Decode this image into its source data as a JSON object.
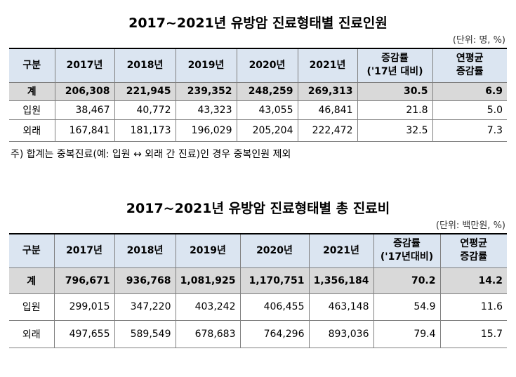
{
  "tables": [
    {
      "title": "2017~2021년 유방암 진료형태별 진료인원",
      "unit": "(단위: 명, %)",
      "headers": [
        "구분",
        "2017년",
        "2018년",
        "2019년",
        "2020년",
        "2021년",
        "증감률\n('17년 대비)",
        "연평균\n증감률"
      ],
      "rows": [
        [
          "계",
          "206,308",
          "221,945",
          "239,352",
          "248,259",
          "269,313",
          "30.5",
          "6.9"
        ],
        [
          "입원",
          "38,467",
          "40,772",
          "43,323",
          "43,055",
          "46,841",
          "21.8",
          "5.0"
        ],
        [
          "외래",
          "167,841",
          "181,173",
          "196,029",
          "205,204",
          "222,472",
          "32.5",
          "7.3"
        ]
      ],
      "note": "주) 합계는 중복진료(예: 입원 ↔ 외래 간 진료)인 경우 중복인원 제외"
    },
    {
      "title": "2017~2021년 유방암 진료형태별 총 진료비",
      "unit": "(단위: 백만원, %)",
      "headers": [
        "구분",
        "2017년",
        "2018년",
        "2019년",
        "2020년",
        "2021년",
        "증감률\n('17년대비)",
        "연평균\n증감률"
      ],
      "rows": [
        [
          "계",
          "796,671",
          "936,768",
          "1,081,925",
          "1,170,751",
          "1,356,184",
          "70.2",
          "14.2"
        ],
        [
          "입원",
          "299,015",
          "347,220",
          "403,242",
          "406,455",
          "463,148",
          "54.9",
          "11.6"
        ],
        [
          "외래",
          "497,655",
          "589,549",
          "678,683",
          "764,296",
          "893,036",
          "79.4",
          "15.7"
        ]
      ]
    }
  ]
}
